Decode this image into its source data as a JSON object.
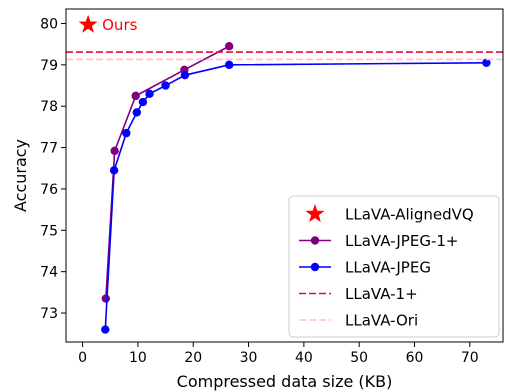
{
  "chart_data": {
    "type": "line",
    "xlabel": "Compressed data size (KB)",
    "ylabel": "Accuracy",
    "xlim": [
      -3,
      76
    ],
    "ylim": [
      72.3,
      80.35
    ],
    "xticks": [
      0,
      10,
      20,
      30,
      40,
      50,
      60,
      70
    ],
    "yticks": [
      73,
      74,
      75,
      76,
      77,
      78,
      79,
      80
    ],
    "grid": false,
    "legend_placement": "lower-right",
    "series": [
      {
        "name": "LLaVA-AlignedVQ",
        "kind": "star",
        "color": "#ff0000",
        "x": [
          1
        ],
        "y": [
          79.97
        ]
      },
      {
        "name": "LLaVA-JPEG-1+",
        "kind": "line-marker",
        "color": "#800080",
        "x": [
          4.2,
          5.8,
          9.6,
          18.4,
          26.5
        ],
        "y": [
          73.35,
          76.92,
          78.25,
          78.88,
          79.45
        ]
      },
      {
        "name": "LLaVA-JPEG",
        "kind": "line-marker",
        "color": "#0000ff",
        "x": [
          4.1,
          5.7,
          7.9,
          9.8,
          10.9,
          12.1,
          15.0,
          18.5,
          26.5,
          73.0
        ],
        "y": [
          72.6,
          76.45,
          77.35,
          77.85,
          78.1,
          78.3,
          78.5,
          78.75,
          79.0,
          79.05
        ]
      },
      {
        "name": "LLaVA-1+",
        "kind": "hline",
        "color": "#dc143c",
        "y": 79.31
      },
      {
        "name": "LLaVA-Ori",
        "kind": "hline",
        "color": "#ffc0cb",
        "y": 79.13
      }
    ],
    "annotations": [
      {
        "text": "Ours",
        "x": 1,
        "y": 79.97,
        "color": "#ff0000"
      }
    ]
  }
}
